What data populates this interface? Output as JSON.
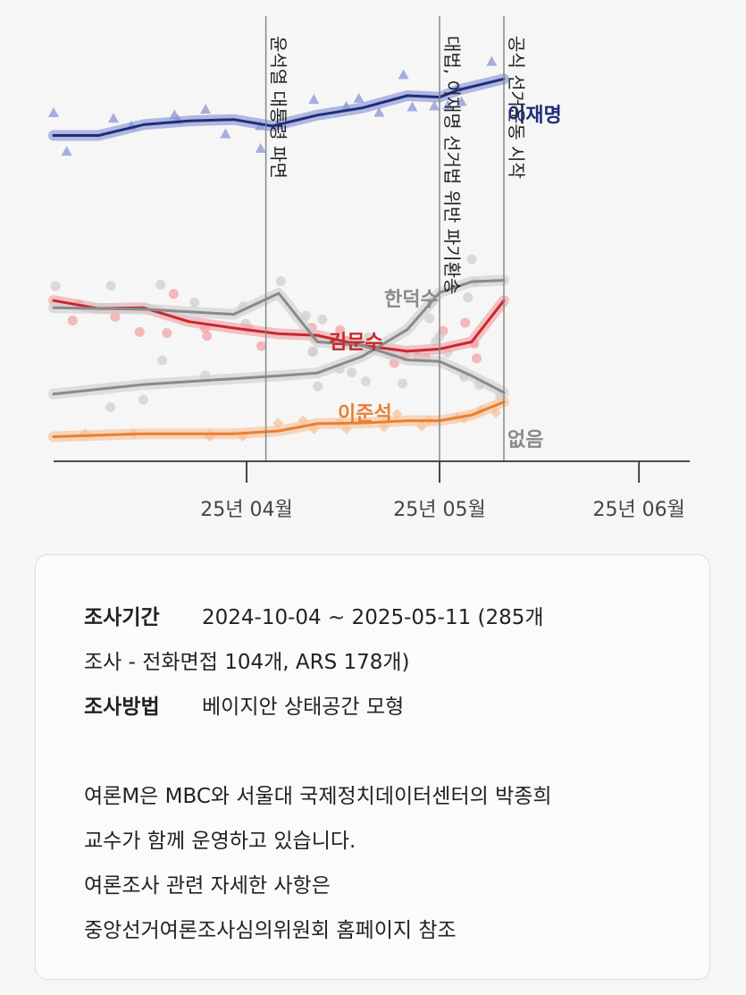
{
  "chart_data": {
    "type": "line",
    "x_ticks": [
      "25년 04월",
      "25년 05월",
      "25년 06월"
    ],
    "events": [
      {
        "date": "2025-04-04",
        "label": "윤석열 대통령 파면"
      },
      {
        "date": "2025-05-01",
        "label": "대법, 이재명 선거법 위반 파기환송"
      },
      {
        "date": "2025-05-11",
        "label": "공식 선거운동 시작"
      }
    ],
    "series": [
      {
        "name": "이재명",
        "color": "#1f2e7a",
        "band": "#8a95d6",
        "marker": "triangle",
        "points": [
          [
            "2025-03-02",
            45.0
          ],
          [
            "2025-03-09",
            45.0
          ],
          [
            "2025-03-16",
            46.5
          ],
          [
            "2025-03-23",
            47.0
          ],
          [
            "2025-03-30",
            47.2
          ],
          [
            "2025-04-05",
            46.3
          ],
          [
            "2025-04-12",
            47.8
          ],
          [
            "2025-04-19",
            48.8
          ],
          [
            "2025-04-26",
            50.5
          ],
          [
            "2025-05-01",
            50.3
          ],
          [
            "2025-05-04",
            51.3
          ],
          [
            "2025-05-11",
            52.8
          ]
        ]
      },
      {
        "name": "김문수",
        "color": "#c8272e",
        "band": "#f1a3a6",
        "marker": "circle",
        "points": [
          [
            "2025-03-02",
            22.2
          ],
          [
            "2025-03-09",
            21.1
          ],
          [
            "2025-03-16",
            21.2
          ],
          [
            "2025-03-23",
            19.3
          ],
          [
            "2025-03-30",
            18.4
          ],
          [
            "2025-04-06",
            17.6
          ],
          [
            "2025-04-12",
            17.4
          ],
          [
            "2025-04-19",
            16.0
          ],
          [
            "2025-04-26",
            15.2
          ],
          [
            "2025-05-01",
            15.5
          ],
          [
            "2025-05-06",
            16.5
          ],
          [
            "2025-05-11",
            22.2
          ]
        ]
      },
      {
        "name": "한덕수",
        "color": "#8a8a8a",
        "band": "#cfcfcf",
        "marker": "circle",
        "points": [
          [
            "2025-03-02",
            9.3
          ],
          [
            "2025-03-16",
            10.6
          ],
          [
            "2025-04-06",
            11.8
          ],
          [
            "2025-04-12",
            12.2
          ],
          [
            "2025-04-19",
            14.5
          ],
          [
            "2025-04-26",
            18.2
          ],
          [
            "2025-05-01",
            23.3
          ],
          [
            "2025-05-06",
            24.8
          ],
          [
            "2025-05-11",
            25.0
          ]
        ]
      },
      {
        "name": "없음",
        "color": "#8a8a8a",
        "band": "#cfcfcf",
        "marker": "circle",
        "points": [
          [
            "2025-03-02",
            21.2
          ],
          [
            "2025-03-16",
            21.0
          ],
          [
            "2025-03-30",
            20.3
          ],
          [
            "2025-04-06",
            23.2
          ],
          [
            "2025-04-12",
            16.5
          ],
          [
            "2025-04-19",
            16.0
          ],
          [
            "2025-04-26",
            14.0
          ],
          [
            "2025-05-01",
            13.8
          ],
          [
            "2025-05-06",
            11.8
          ],
          [
            "2025-05-11",
            9.5
          ]
        ]
      },
      {
        "name": "이준석",
        "color": "#ea7f30",
        "band": "#f7c29a",
        "marker": "diamond",
        "points": [
          [
            "2025-03-02",
            3.4
          ],
          [
            "2025-03-16",
            3.8
          ],
          [
            "2025-03-30",
            3.8
          ],
          [
            "2025-04-06",
            4.2
          ],
          [
            "2025-04-12",
            5.2
          ],
          [
            "2025-04-19",
            5.3
          ],
          [
            "2025-04-26",
            5.6
          ],
          [
            "2025-05-01",
            5.6
          ],
          [
            "2025-05-06",
            6.4
          ],
          [
            "2025-05-11",
            8.2
          ]
        ]
      }
    ]
  },
  "info": {
    "period_label": "조사기간",
    "period_value": "2024-10-04 ~ 2025-05-11 (285개",
    "period_cont": "조사 - 전화면접 104개, ARS 178개)",
    "method_label": "조사방법",
    "method_value": "베이지안 상태공간 모형",
    "note_1": "여론M은 MBC와 서울대 국제정치데이터센터의 박종희",
    "note_2": "교수가 함께 운영하고 있습니다.",
    "note_3": "여론조사 관련 자세한 사항은",
    "note_4": "중앙선거여론조사심의위원회 홈페이지 참조"
  }
}
